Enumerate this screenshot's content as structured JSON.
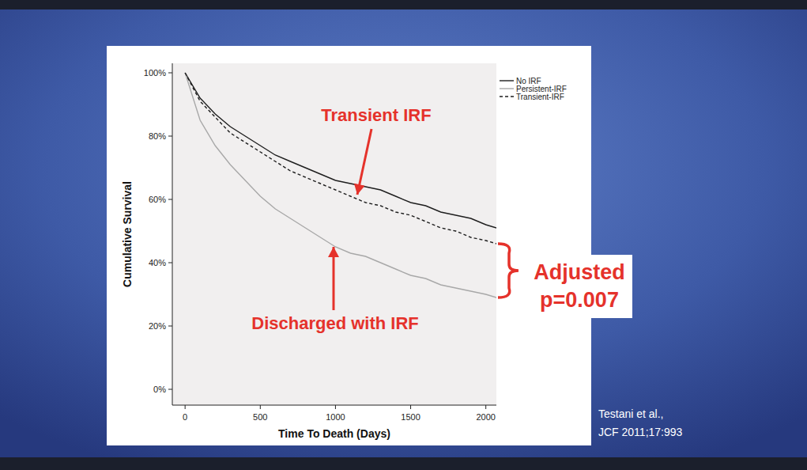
{
  "chart_data": {
    "type": "line",
    "x_label": "Time To Death (Days)",
    "y_label": "Cumulative Survival",
    "xlim": [
      -85,
      2070
    ],
    "ylim": [
      -5,
      103
    ],
    "xticks": [
      0,
      500,
      1000,
      1500,
      2000
    ],
    "yticks": [
      {
        "value": 0,
        "label": "0%"
      },
      {
        "value": 20,
        "label": "20%"
      },
      {
        "value": 40,
        "label": "40%"
      },
      {
        "value": 60,
        "label": "60%"
      },
      {
        "value": 80,
        "label": "80%"
      },
      {
        "value": 100,
        "label": "100%"
      }
    ],
    "grid": false,
    "legend": "top-right",
    "series": [
      {
        "name": "No IRF",
        "color": "#1e1e1e",
        "line_style": "solid",
        "x": [
          0,
          100,
          200,
          300,
          400,
          500,
          600,
          700,
          800,
          900,
          1000,
          1100,
          1200,
          1300,
          1400,
          1500,
          1600,
          1700,
          1800,
          1900,
          2000,
          2070
        ],
        "values": [
          100,
          92,
          87,
          83,
          80,
          77,
          74,
          72,
          70,
          68,
          66,
          65,
          64,
          63,
          61,
          59,
          58,
          56,
          55,
          54,
          52,
          51
        ]
      },
      {
        "name": "Persistent-IRF",
        "color": "#a8a8a8",
        "line_style": "solid",
        "x": [
          0,
          100,
          200,
          300,
          400,
          500,
          600,
          700,
          800,
          900,
          1000,
          1100,
          1200,
          1300,
          1400,
          1500,
          1600,
          1700,
          1800,
          1900,
          2000,
          2070
        ],
        "values": [
          100,
          85,
          77,
          71,
          66,
          61,
          57,
          54,
          51,
          48,
          45,
          43,
          42,
          40,
          38,
          36,
          35,
          33,
          32,
          31,
          30,
          29
        ]
      },
      {
        "name": "Transient-IRF",
        "color": "#1e1e1e",
        "line_style": "dashed",
        "x": [
          0,
          100,
          200,
          300,
          400,
          500,
          600,
          700,
          800,
          900,
          1000,
          1100,
          1200,
          1300,
          1400,
          1500,
          1600,
          1700,
          1800,
          1900,
          2000,
          2070
        ],
        "values": [
          100,
          91,
          86,
          81,
          78,
          75,
          72,
          69,
          67,
          65,
          63,
          61,
          59,
          58,
          56,
          55,
          53,
          51,
          50,
          48,
          47,
          46
        ]
      }
    ],
    "annotations": [
      "Transient IRF",
      "Discharged with IRF",
      "Adjusted",
      "p=0.007"
    ]
  },
  "citation": [
    "Testani et al.,",
    "JCF 2011;17:993"
  ]
}
